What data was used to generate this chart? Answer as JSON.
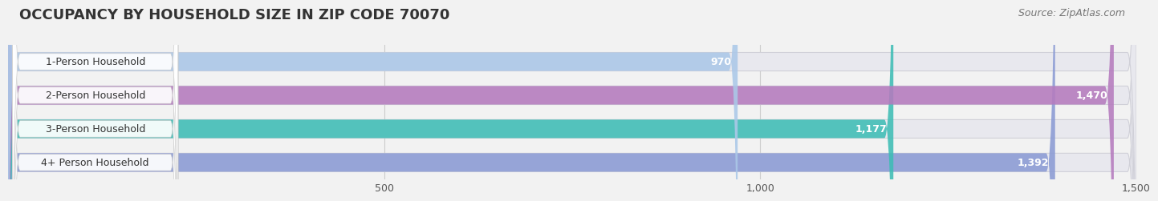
{
  "title": "OCCUPANCY BY HOUSEHOLD SIZE IN ZIP CODE 70070",
  "source": "Source: ZipAtlas.com",
  "categories": [
    "1-Person Household",
    "2-Person Household",
    "3-Person Household",
    "4+ Person Household"
  ],
  "values": [
    970,
    1470,
    1177,
    1392
  ],
  "bar_colors": [
    "#abc8e8",
    "#b57bbe",
    "#3ebdb5",
    "#8b9bd4"
  ],
  "xlim_max": 1500,
  "xticks": [
    500,
    1000,
    1500
  ],
  "value_labels": [
    "970",
    "1,470",
    "1,177",
    "1,392"
  ],
  "background_color": "#f2f2f2",
  "bar_bg_color": "#e8e8ee",
  "title_fontsize": 13,
  "source_fontsize": 9,
  "label_fontsize": 9,
  "tick_fontsize": 9,
  "bar_height": 0.55,
  "bar_gap": 1.0
}
